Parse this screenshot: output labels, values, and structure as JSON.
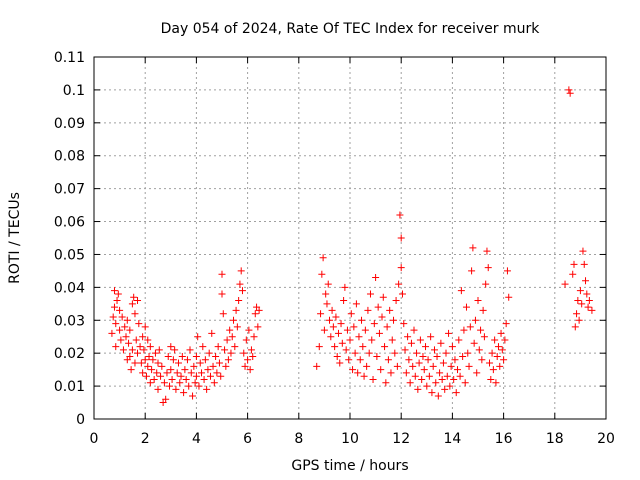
{
  "chart_data": {
    "type": "scatter",
    "title": "Day 054 of 2024, Rate Of TEC Index for receiver murk",
    "xlabel": "GPS time / hours",
    "ylabel": "ROTI / TECUs",
    "xlim": [
      0,
      20
    ],
    "ylim": [
      0,
      0.11
    ],
    "xticks": [
      "0",
      "2",
      "4",
      "6",
      "8",
      "10",
      "12",
      "14",
      "16",
      "18",
      "20"
    ],
    "yticks": [
      "0",
      "0.01",
      "0.02",
      "0.03",
      "0.04",
      "0.05",
      "0.06",
      "0.07",
      "0.08",
      "0.09",
      "0.1",
      "0.11"
    ],
    "grid": true,
    "marker": "+",
    "color": "#ff0000",
    "series": [
      {
        "points": [
          [
            0.7,
            0.026
          ],
          [
            0.75,
            0.031
          ],
          [
            0.8,
            0.034
          ],
          [
            0.8,
            0.039
          ],
          [
            0.85,
            0.022
          ],
          [
            0.85,
            0.029
          ],
          [
            0.9,
            0.036
          ],
          [
            0.95,
            0.038
          ],
          [
            1.0,
            0.027
          ],
          [
            1.0,
            0.033
          ],
          [
            1.05,
            0.024
          ],
          [
            1.1,
            0.031
          ],
          [
            1.15,
            0.021
          ],
          [
            1.2,
            0.028
          ],
          [
            1.25,
            0.025
          ],
          [
            1.3,
            0.03
          ],
          [
            1.3,
            0.018
          ],
          [
            1.35,
            0.023
          ],
          [
            1.4,
            0.019
          ],
          [
            1.4,
            0.027
          ],
          [
            1.45,
            0.015
          ],
          [
            1.5,
            0.021
          ],
          [
            1.5,
            0.035
          ],
          [
            1.55,
            0.037
          ],
          [
            1.6,
            0.017
          ],
          [
            1.6,
            0.032
          ],
          [
            1.65,
            0.024
          ],
          [
            1.7,
            0.036
          ],
          [
            1.7,
            0.02
          ],
          [
            1.75,
            0.029
          ],
          [
            1.8,
            0.022
          ],
          [
            1.85,
            0.017
          ],
          [
            1.9,
            0.025
          ],
          [
            1.9,
            0.014
          ],
          [
            1.95,
            0.021
          ],
          [
            2.0,
            0.018
          ],
          [
            2.0,
            0.028
          ],
          [
            2.05,
            0.013
          ],
          [
            2.1,
            0.024
          ],
          [
            2.1,
            0.016
          ],
          [
            2.15,
            0.019
          ],
          [
            2.2,
            0.011
          ],
          [
            2.2,
            0.022
          ],
          [
            2.25,
            0.015
          ],
          [
            2.3,
            0.018
          ],
          [
            2.35,
            0.012
          ],
          [
            2.4,
            0.02
          ],
          [
            2.45,
            0.014
          ],
          [
            2.5,
            0.017
          ],
          [
            2.5,
            0.009
          ],
          [
            2.55,
            0.021
          ],
          [
            2.6,
            0.013
          ],
          [
            2.65,
            0.016
          ],
          [
            2.7,
            0.005
          ],
          [
            2.75,
            0.011
          ],
          [
            2.8,
            0.006
          ],
          [
            2.85,
            0.014
          ],
          [
            2.9,
            0.019
          ],
          [
            2.95,
            0.01
          ],
          [
            3.0,
            0.022
          ],
          [
            3.0,
            0.015
          ],
          [
            3.05,
            0.012
          ],
          [
            3.1,
            0.018
          ],
          [
            3.15,
            0.021
          ],
          [
            3.2,
            0.009
          ],
          [
            3.25,
            0.014
          ],
          [
            3.3,
            0.017
          ],
          [
            3.35,
            0.011
          ],
          [
            3.4,
            0.013
          ],
          [
            3.45,
            0.019
          ],
          [
            3.5,
            0.008
          ],
          [
            3.55,
            0.015
          ],
          [
            3.6,
            0.012
          ],
          [
            3.65,
            0.018
          ],
          [
            3.7,
            0.01
          ],
          [
            3.75,
            0.021
          ],
          [
            3.8,
            0.014
          ],
          [
            3.85,
            0.007
          ],
          [
            3.9,
            0.016
          ],
          [
            3.95,
            0.011
          ],
          [
            4.0,
            0.019
          ],
          [
            4.0,
            0.013
          ],
          [
            4.05,
            0.025
          ],
          [
            4.1,
            0.01
          ],
          [
            4.15,
            0.017
          ],
          [
            4.2,
            0.014
          ],
          [
            4.25,
            0.022
          ],
          [
            4.3,
            0.012
          ],
          [
            4.35,
            0.018
          ],
          [
            4.4,
            0.009
          ],
          [
            4.45,
            0.015
          ],
          [
            4.5,
            0.02
          ],
          [
            4.55,
            0.013
          ],
          [
            4.6,
            0.026
          ],
          [
            4.65,
            0.016
          ],
          [
            4.7,
            0.011
          ],
          [
            4.75,
            0.019
          ],
          [
            4.8,
            0.014
          ],
          [
            4.85,
            0.022
          ],
          [
            4.9,
            0.017
          ],
          [
            4.95,
            0.013
          ],
          [
            5.0,
            0.038
          ],
          [
            5.0,
            0.044
          ],
          [
            5.05,
            0.032
          ],
          [
            5.1,
            0.021
          ],
          [
            5.15,
            0.016
          ],
          [
            5.2,
            0.024
          ],
          [
            5.25,
            0.018
          ],
          [
            5.3,
            0.027
          ],
          [
            5.35,
            0.02
          ],
          [
            5.4,
            0.025
          ],
          [
            5.45,
            0.03
          ],
          [
            5.5,
            0.022
          ],
          [
            5.55,
            0.033
          ],
          [
            5.6,
            0.028
          ],
          [
            5.65,
            0.036
          ],
          [
            5.7,
            0.041
          ],
          [
            5.75,
            0.045
          ],
          [
            5.8,
            0.039
          ],
          [
            5.85,
            0.02
          ],
          [
            5.9,
            0.016
          ],
          [
            5.95,
            0.024
          ],
          [
            6.0,
            0.018
          ],
          [
            6.05,
            0.027
          ],
          [
            6.1,
            0.015
          ],
          [
            6.15,
            0.021
          ],
          [
            6.2,
            0.019
          ],
          [
            6.25,
            0.025
          ],
          [
            6.3,
            0.032
          ],
          [
            6.35,
            0.034
          ],
          [
            6.4,
            0.028
          ],
          [
            6.45,
            0.033
          ],
          [
            8.7,
            0.016
          ],
          [
            8.8,
            0.022
          ],
          [
            8.85,
            0.032
          ],
          [
            8.9,
            0.044
          ],
          [
            8.95,
            0.049
          ],
          [
            9.0,
            0.027
          ],
          [
            9.05,
            0.038
          ],
          [
            9.1,
            0.035
          ],
          [
            9.15,
            0.041
          ],
          [
            9.2,
            0.03
          ],
          [
            9.25,
            0.025
          ],
          [
            9.3,
            0.033
          ],
          [
            9.35,
            0.028
          ],
          [
            9.4,
            0.022
          ],
          [
            9.45,
            0.031
          ],
          [
            9.5,
            0.019
          ],
          [
            9.55,
            0.026
          ],
          [
            9.6,
            0.017
          ],
          [
            9.65,
            0.029
          ],
          [
            9.7,
            0.023
          ],
          [
            9.75,
            0.036
          ],
          [
            9.8,
            0.04
          ],
          [
            9.85,
            0.021
          ],
          [
            9.9,
            0.027
          ],
          [
            9.95,
            0.018
          ],
          [
            10.0,
            0.024
          ],
          [
            10.05,
            0.032
          ],
          [
            10.1,
            0.015
          ],
          [
            10.15,
            0.028
          ],
          [
            10.2,
            0.02
          ],
          [
            10.25,
            0.035
          ],
          [
            10.3,
            0.014
          ],
          [
            10.35,
            0.025
          ],
          [
            10.4,
            0.018
          ],
          [
            10.45,
            0.03
          ],
          [
            10.5,
            0.022
          ],
          [
            10.55,
            0.013
          ],
          [
            10.6,
            0.027
          ],
          [
            10.65,
            0.016
          ],
          [
            10.7,
            0.033
          ],
          [
            10.75,
            0.02
          ],
          [
            10.8,
            0.038
          ],
          [
            10.85,
            0.024
          ],
          [
            10.9,
            0.012
          ],
          [
            10.95,
            0.029
          ],
          [
            11.0,
            0.043
          ],
          [
            11.05,
            0.019
          ],
          [
            11.1,
            0.034
          ],
          [
            11.15,
            0.026
          ],
          [
            11.2,
            0.015
          ],
          [
            11.25,
            0.031
          ],
          [
            11.3,
            0.037
          ],
          [
            11.35,
            0.022
          ],
          [
            11.4,
            0.011
          ],
          [
            11.45,
            0.028
          ],
          [
            11.5,
            0.018
          ],
          [
            11.55,
            0.033
          ],
          [
            11.6,
            0.014
          ],
          [
            11.65,
            0.024
          ],
          [
            11.7,
            0.03
          ],
          [
            11.75,
            0.02
          ],
          [
            11.8,
            0.036
          ],
          [
            11.85,
            0.016
          ],
          [
            11.9,
            0.041
          ],
          [
            11.95,
            0.062
          ],
          [
            12.0,
            0.055
          ],
          [
            12.0,
            0.046
          ],
          [
            12.05,
            0.038
          ],
          [
            12.1,
            0.029
          ],
          [
            12.15,
            0.021
          ],
          [
            12.2,
            0.014
          ],
          [
            12.25,
            0.025
          ],
          [
            12.3,
            0.018
          ],
          [
            12.35,
            0.011
          ],
          [
            12.4,
            0.023
          ],
          [
            12.45,
            0.016
          ],
          [
            12.5,
            0.027
          ],
          [
            12.55,
            0.013
          ],
          [
            12.6,
            0.02
          ],
          [
            12.65,
            0.009
          ],
          [
            12.7,
            0.017
          ],
          [
            12.75,
            0.024
          ],
          [
            12.8,
            0.012
          ],
          [
            12.85,
            0.019
          ],
          [
            12.9,
            0.015
          ],
          [
            12.95,
            0.022
          ],
          [
            13.0,
            0.01
          ],
          [
            13.05,
            0.018
          ],
          [
            13.1,
            0.013
          ],
          [
            13.15,
            0.025
          ],
          [
            13.2,
            0.008
          ],
          [
            13.25,
            0.016
          ],
          [
            13.3,
            0.021
          ],
          [
            13.35,
            0.011
          ],
          [
            13.4,
            0.019
          ],
          [
            13.45,
            0.007
          ],
          [
            13.5,
            0.014
          ],
          [
            13.55,
            0.023
          ],
          [
            13.6,
            0.012
          ],
          [
            13.65,
            0.017
          ],
          [
            13.7,
            0.009
          ],
          [
            13.75,
            0.02
          ],
          [
            13.8,
            0.013
          ],
          [
            13.85,
            0.026
          ],
          [
            13.9,
            0.01
          ],
          [
            13.95,
            0.016
          ],
          [
            14.0,
            0.022
          ],
          [
            14.05,
            0.012
          ],
          [
            14.1,
            0.018
          ],
          [
            14.15,
            0.008
          ],
          [
            14.2,
            0.015
          ],
          [
            14.25,
            0.024
          ],
          [
            14.3,
            0.013
          ],
          [
            14.35,
            0.039
          ],
          [
            14.4,
            0.019
          ],
          [
            14.45,
            0.027
          ],
          [
            14.5,
            0.011
          ],
          [
            14.55,
            0.034
          ],
          [
            14.6,
            0.02
          ],
          [
            14.65,
            0.016
          ],
          [
            14.7,
            0.028
          ],
          [
            14.75,
            0.045
          ],
          [
            14.8,
            0.052
          ],
          [
            14.85,
            0.023
          ],
          [
            14.9,
            0.03
          ],
          [
            14.95,
            0.014
          ],
          [
            15.0,
            0.036
          ],
          [
            15.05,
            0.021
          ],
          [
            15.1,
            0.027
          ],
          [
            15.15,
            0.018
          ],
          [
            15.2,
            0.033
          ],
          [
            15.25,
            0.025
          ],
          [
            15.3,
            0.041
          ],
          [
            15.35,
            0.051
          ],
          [
            15.4,
            0.046
          ],
          [
            15.45,
            0.017
          ],
          [
            15.5,
            0.012
          ],
          [
            15.55,
            0.02
          ],
          [
            15.6,
            0.015
          ],
          [
            15.65,
            0.024
          ],
          [
            15.7,
            0.011
          ],
          [
            15.75,
            0.019
          ],
          [
            15.8,
            0.022
          ],
          [
            15.85,
            0.016
          ],
          [
            15.9,
            0.026
          ],
          [
            15.95,
            0.021
          ],
          [
            16.0,
            0.018
          ],
          [
            16.05,
            0.024
          ],
          [
            16.1,
            0.029
          ],
          [
            16.15,
            0.045
          ],
          [
            16.2,
            0.037
          ],
          [
            18.4,
            0.041
          ],
          [
            18.55,
            0.1
          ],
          [
            18.6,
            0.099
          ],
          [
            18.7,
            0.044
          ],
          [
            18.75,
            0.047
          ],
          [
            18.8,
            0.028
          ],
          [
            18.85,
            0.032
          ],
          [
            18.9,
            0.036
          ],
          [
            18.95,
            0.03
          ],
          [
            19.0,
            0.039
          ],
          [
            19.05,
            0.035
          ],
          [
            19.1,
            0.051
          ],
          [
            19.15,
            0.047
          ],
          [
            19.2,
            0.042
          ],
          [
            19.25,
            0.038
          ],
          [
            19.3,
            0.034
          ],
          [
            19.35,
            0.036
          ],
          [
            19.45,
            0.033
          ]
        ]
      }
    ]
  }
}
